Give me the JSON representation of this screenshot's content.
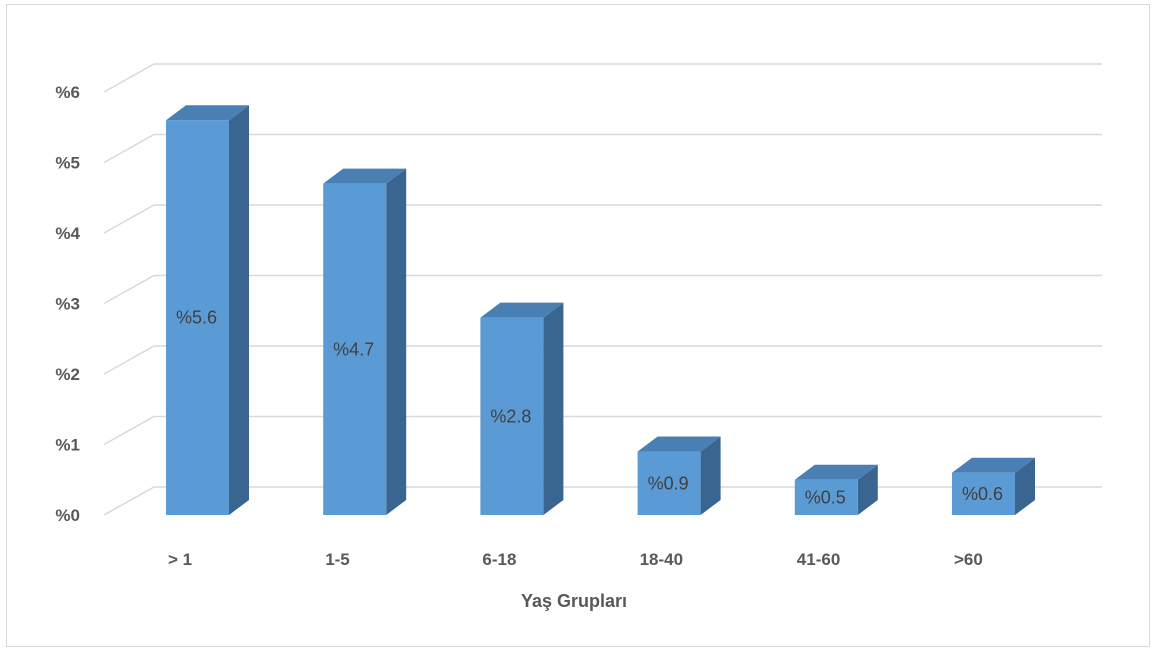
{
  "chart_data": {
    "type": "bar",
    "categories": [
      "> 1",
      "1-5",
      "6-18",
      "18-40",
      "41-60",
      ">60"
    ],
    "values": [
      5.6,
      4.7,
      2.8,
      0.9,
      0.5,
      0.6
    ],
    "data_labels": [
      "%5.6",
      "%4.7",
      "%2.8",
      "%0.9",
      "%0.5",
      "%0.6"
    ],
    "y_ticks": [
      0,
      1,
      2,
      3,
      4,
      5,
      6
    ],
    "y_tick_labels": [
      "%0",
      "%1",
      "%2",
      "%3",
      "%4",
      "%5",
      "%6"
    ],
    "ylim": [
      0,
      6
    ],
    "xlabel": "Yaş Grupları",
    "ylabel": "",
    "title": "",
    "grid": true,
    "legend": "none",
    "style": "3d-column",
    "colors": {
      "bar_front": "#5b9bd5",
      "bar_side": "#3a6591",
      "bar_top": "#4a7fb4",
      "grid": "#d9d9d9",
      "text": "#595959",
      "data_label": "#404040"
    }
  }
}
